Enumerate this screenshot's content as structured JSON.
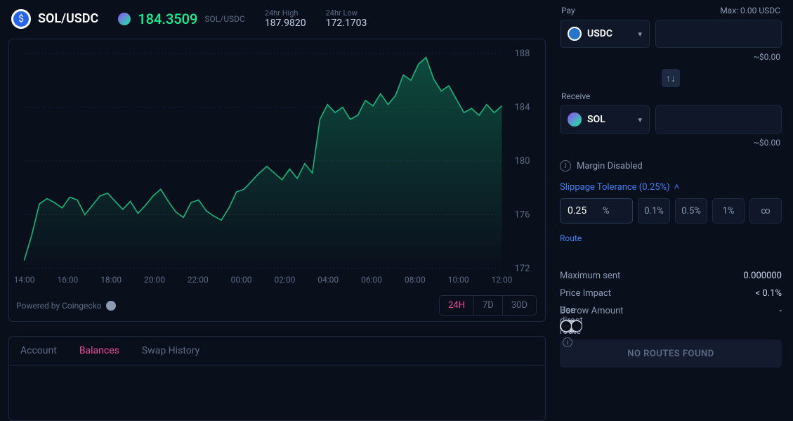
{
  "header": {
    "pair": "SOL/USDC",
    "price": "184.3509",
    "price_sub": "SOL/USDC",
    "high_label": "24hr High",
    "high_val": "187.9820",
    "low_label": "24hr Low",
    "low_val": "172.1703"
  },
  "chart": {
    "color_line": "#14b87a",
    "color_fill_top": "rgba(20,184,122,0.35)",
    "color_fill_bottom": "rgba(20,184,122,0.0)",
    "grid_color": "#1a2438",
    "text_color": "#5b6b85",
    "y_ticks": [
      172,
      176,
      180,
      184,
      188
    ],
    "y_min": 172,
    "y_max": 188,
    "x_labels": [
      "14:00",
      "16:00",
      "18:00",
      "20:00",
      "22:00",
      "00:00",
      "02:00",
      "04:00",
      "06:00",
      "08:00",
      "10:00",
      "12:00"
    ],
    "series": [
      172.6,
      174.5,
      176.8,
      177.2,
      176.9,
      176.5,
      177.3,
      177.1,
      176.0,
      176.7,
      177.4,
      177.6,
      177.0,
      176.4,
      177.0,
      176.1,
      176.7,
      177.4,
      177.9,
      177.0,
      176.2,
      175.8,
      176.9,
      177.1,
      176.3,
      175.9,
      175.6,
      176.5,
      177.7,
      177.9,
      178.5,
      179.1,
      179.6,
      179.1,
      178.6,
      179.4,
      178.7,
      179.8,
      179.1,
      183.1,
      184.2,
      183.6,
      184.0,
      183.1,
      183.4,
      184.5,
      184.1,
      185.0,
      184.2,
      184.9,
      186.4,
      186.0,
      187.2,
      187.7,
      186.1,
      185.2,
      185.6,
      184.6,
      183.6,
      183.9,
      183.4,
      184.2,
      183.6,
      184.1
    ],
    "powered": "Powered by Coingecko",
    "timeframes": [
      "24H",
      "7D",
      "30D"
    ],
    "timeframe_active": 0
  },
  "tabs": {
    "items": [
      "Account",
      "Balances",
      "Swap History"
    ],
    "active": 1
  },
  "swap": {
    "pay_label": "Pay",
    "max_label": "Max: 0.00 USDC",
    "pay_token": "USDC",
    "pay_approx": "~$0.00",
    "receive_label": "Receive",
    "receive_token": "SOL",
    "receive_approx": "~$0.00",
    "swap_icon": "↑↓",
    "margin_text": "Margin Disabled",
    "slippage_label": "Slippage Tolerance (0.25%)",
    "slippage_value": "0.25",
    "slippage_buttons": [
      "0.1%",
      "0.5%",
      "1%",
      "∞"
    ],
    "route_label": "Route",
    "max_sent_label": "Maximum sent",
    "max_sent_val": "0.000000",
    "price_impact_label": "Price Impact",
    "price_impact_val": "< 0.1%",
    "borrow_label": "Borrow Amount",
    "borrow_val": "-",
    "direct_route_label": "Use direct route",
    "direct_route_on": true,
    "submit_label": "NO ROUTES FOUND"
  }
}
